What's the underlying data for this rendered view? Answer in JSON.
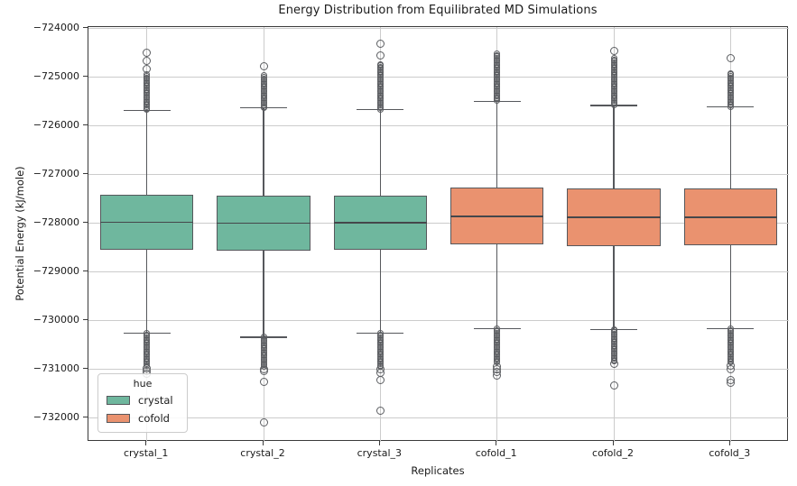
{
  "title": "Energy Distribution from Equilibrated MD Simulations",
  "axes": {
    "xlabel": "Replicates",
    "ylabel": "Potential Energy (kJ/mole)"
  },
  "legend": {
    "title": "hue",
    "items": [
      {
        "label": "crystal",
        "color": "#6fb79e"
      },
      {
        "label": "cofold",
        "color": "#ea926f"
      }
    ]
  },
  "style": {
    "box_line": "#56585c",
    "median_line": "#45474b",
    "grid_color": "#cccccc",
    "spine_color": "#3a3a3a",
    "outlier_color": "#5b5d61",
    "background": "#ffffff"
  },
  "chart_data": {
    "type": "boxplot",
    "title": "Energy Distribution from Equilibrated MD Simulations",
    "xlabel": "Replicates",
    "ylabel": "Potential Energy (kJ/mole)",
    "grid": true,
    "legend_position": "lower left",
    "categories": [
      "crystal_1",
      "crystal_2",
      "crystal_3",
      "cofold_1",
      "cofold_2",
      "cofold_3"
    ],
    "hues": {
      "crystal": "#6fb79e",
      "cofold": "#ea926f"
    },
    "ylim": [
      -732500,
      -723980
    ],
    "yticks": [
      -724000,
      -725000,
      -726000,
      -727000,
      -728000,
      -729000,
      -730000,
      -731000,
      -732000
    ],
    "ytick_labels": [
      "−724000",
      "−725000",
      "−726000",
      "−727000",
      "−728000",
      "−729000",
      "−730000",
      "−731000",
      "−732000"
    ],
    "boxes": [
      {
        "category": "crystal_1",
        "hue": "crystal",
        "q1": -728560,
        "median": -727990,
        "q3": -727430,
        "whisker_low": -730270,
        "whisker_high": -725690,
        "outliers_high": [
          -724500,
          -724670,
          -724840
        ],
        "outlier_band_high": {
          "top": -724960,
          "bottom": -725690
        },
        "outliers_low": [
          -730990,
          -731050,
          -731110
        ],
        "outlier_band_low": {
          "top": -730270,
          "bottom": -730940
        }
      },
      {
        "category": "crystal_2",
        "hue": "crystal",
        "q1": -728580,
        "median": -728010,
        "q3": -727440,
        "whisker_low": -730350,
        "whisker_high": -725640,
        "outliers_high": [
          -724790
        ],
        "outlier_band_high": {
          "top": -724980,
          "bottom": -725640
        },
        "outliers_low": [
          -731000,
          -731050,
          -731260,
          -732100
        ],
        "outlier_band_low": {
          "top": -730350,
          "bottom": -730950
        }
      },
      {
        "category": "crystal_3",
        "hue": "crystal",
        "q1": -728560,
        "median": -728000,
        "q3": -727440,
        "whisker_low": -730270,
        "whisker_high": -725670,
        "outliers_high": [
          -724320,
          -724560
        ],
        "outlier_band_high": {
          "top": -724740,
          "bottom": -725670
        },
        "outliers_low": [
          -731010,
          -731080,
          -731230,
          -731870
        ],
        "outlier_band_low": {
          "top": -730270,
          "bottom": -730960
        }
      },
      {
        "category": "cofold_1",
        "hue": "cofold",
        "q1": -728440,
        "median": -727870,
        "q3": -727280,
        "whisker_low": -730180,
        "whisker_high": -725510,
        "outliers_high": [],
        "outlier_band_high": {
          "top": -724530,
          "bottom": -725510
        },
        "outliers_low": [
          -730950,
          -731010,
          -731070,
          -731130
        ],
        "outlier_band_low": {
          "top": -730180,
          "bottom": -730890
        }
      },
      {
        "category": "cofold_2",
        "hue": "cofold",
        "q1": -728480,
        "median": -727890,
        "q3": -727300,
        "whisker_low": -730190,
        "whisker_high": -725590,
        "outliers_high": [
          -724470
        ],
        "outlier_band_high": {
          "top": -724620,
          "bottom": -725590
        },
        "outliers_low": [
          -730900,
          -731350
        ],
        "outlier_band_low": {
          "top": -730190,
          "bottom": -730850
        }
      },
      {
        "category": "cofold_3",
        "hue": "cofold",
        "q1": -728460,
        "median": -727890,
        "q3": -727300,
        "whisker_low": -730180,
        "whisker_high": -725620,
        "outliers_high": [
          -724620
        ],
        "outlier_band_high": {
          "top": -724930,
          "bottom": -725620
        },
        "outliers_low": [
          -730930,
          -731000,
          -731240,
          -731290
        ],
        "outlier_band_low": {
          "top": -730180,
          "bottom": -730870
        }
      }
    ]
  }
}
